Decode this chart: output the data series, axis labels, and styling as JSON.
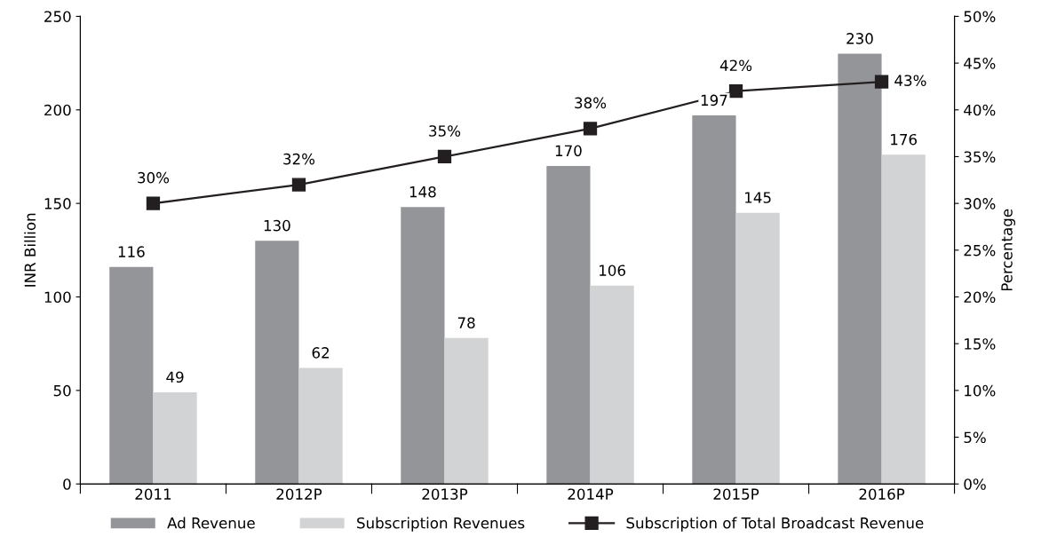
{
  "chart_data": {
    "type": "bar",
    "ylabel": "INR Billion",
    "y2label": "Percentage",
    "categories": [
      "2011",
      "2012P",
      "2013P",
      "2014P",
      "2015P",
      "2016P"
    ],
    "series": [
      {
        "name": "Ad Revenue",
        "color": "#939598",
        "values": [
          116,
          130,
          148,
          170,
          197,
          230
        ],
        "value_labels": [
          "116",
          "130",
          "148",
          "170",
          "197",
          "230"
        ]
      },
      {
        "name": "Subscription Revenues",
        "color": "#d1d3d4",
        "values": [
          49,
          62,
          78,
          106,
          145,
          176
        ],
        "value_labels": [
          "49",
          "62",
          "78",
          "106",
          "145",
          "176"
        ]
      },
      {
        "name": "Subscription of Total Broadcast Revenue",
        "type": "line",
        "axis": "y2",
        "color": "#231f20",
        "marker": "square",
        "values": [
          30,
          32,
          35,
          38,
          42,
          43
        ],
        "value_labels": [
          "30%",
          "32%",
          "35%",
          "38%",
          "42%",
          "43%"
        ]
      }
    ],
    "ylim": [
      0,
      250
    ],
    "yticks": [
      0,
      50,
      100,
      150,
      200,
      250
    ],
    "y2lim": [
      0,
      50
    ],
    "y2ticks": [
      {
        "value": 0,
        "label": "0%"
      },
      {
        "value": 5,
        "label": "5%"
      },
      {
        "value": 10,
        "label": "10%"
      },
      {
        "value": 15,
        "label": "15%"
      },
      {
        "value": 20,
        "label": "20%"
      },
      {
        "value": 25,
        "label": "25%"
      },
      {
        "value": 30,
        "label": "30%"
      },
      {
        "value": 35,
        "label": "35%"
      },
      {
        "value": 40,
        "label": "40%"
      },
      {
        "value": 45,
        "label": "45%"
      },
      {
        "value": 50,
        "label": "50%"
      }
    ],
    "grid": false,
    "legend": "bottom"
  }
}
